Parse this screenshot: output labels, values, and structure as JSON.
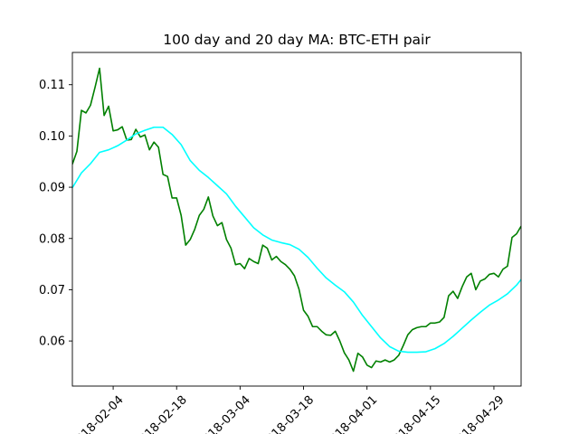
{
  "chart_data": {
    "type": "line",
    "title": "100 day and 20 day MA: BTC-ETH pair",
    "xlabel": "",
    "ylabel": "",
    "x_start": "2018-01-26",
    "x_end": "2018-05-05",
    "ylim": [
      0.0512,
      0.1163
    ],
    "grid": false,
    "x_tick_labels": [
      {
        "date": "2018-02-04",
        "label": "2018-02-04"
      },
      {
        "date": "2018-02-18",
        "label": "2018-02-18"
      },
      {
        "date": "2018-03-04",
        "label": "2018-03-04"
      },
      {
        "date": "2018-03-18",
        "label": "2018-03-18"
      },
      {
        "date": "2018-04-01",
        "label": "2018-04-01"
      },
      {
        "date": "2018-04-15",
        "label": "2018-04-15"
      },
      {
        "date": "2018-04-29",
        "label": "2018-04-29"
      }
    ],
    "y_ticks": [
      {
        "value": 0.06,
        "label": "0.06"
      },
      {
        "value": 0.07,
        "label": "0.07"
      },
      {
        "value": 0.08,
        "label": "0.08"
      },
      {
        "value": 0.09,
        "label": "0.09"
      },
      {
        "value": 0.1,
        "label": "0.10"
      },
      {
        "value": 0.11,
        "label": "0.11"
      }
    ],
    "series": [
      {
        "color": "#008000",
        "points": [
          [
            "2018-01-26",
            0.0945
          ],
          [
            "2018-01-27",
            0.097
          ],
          [
            "2018-01-28",
            0.105
          ],
          [
            "2018-01-29",
            0.1045
          ],
          [
            "2018-01-30",
            0.106
          ],
          [
            "2018-01-31",
            0.1095
          ],
          [
            "2018-02-01",
            0.1132
          ],
          [
            "2018-02-02",
            0.104
          ],
          [
            "2018-02-03",
            0.1058
          ],
          [
            "2018-02-04",
            0.101
          ],
          [
            "2018-02-05",
            0.1012
          ],
          [
            "2018-02-06",
            0.1018
          ],
          [
            "2018-02-07",
            0.0992
          ],
          [
            "2018-02-08",
            0.0993
          ],
          [
            "2018-02-09",
            0.1013
          ],
          [
            "2018-02-10",
            0.0998
          ],
          [
            "2018-02-11",
            0.1002
          ],
          [
            "2018-02-12",
            0.0973
          ],
          [
            "2018-02-13",
            0.0988
          ],
          [
            "2018-02-14",
            0.0978
          ],
          [
            "2018-02-15",
            0.0925
          ],
          [
            "2018-02-16",
            0.0921
          ],
          [
            "2018-02-17",
            0.0879
          ],
          [
            "2018-02-18",
            0.0879
          ],
          [
            "2018-02-19",
            0.0845
          ],
          [
            "2018-02-20",
            0.0787
          ],
          [
            "2018-02-21",
            0.0798
          ],
          [
            "2018-02-22",
            0.0818
          ],
          [
            "2018-02-23",
            0.0845
          ],
          [
            "2018-02-24",
            0.0857
          ],
          [
            "2018-02-25",
            0.0881
          ],
          [
            "2018-02-26",
            0.0844
          ],
          [
            "2018-02-27",
            0.0825
          ],
          [
            "2018-02-28",
            0.0831
          ],
          [
            "2018-03-01",
            0.0798
          ],
          [
            "2018-03-02",
            0.0781
          ],
          [
            "2018-03-03",
            0.0749
          ],
          [
            "2018-03-04",
            0.0751
          ],
          [
            "2018-03-05",
            0.0741
          ],
          [
            "2018-03-06",
            0.0761
          ],
          [
            "2018-03-07",
            0.0755
          ],
          [
            "2018-03-08",
            0.0751
          ],
          [
            "2018-03-09",
            0.0787
          ],
          [
            "2018-03-10",
            0.0781
          ],
          [
            "2018-03-11",
            0.0758
          ],
          [
            "2018-03-12",
            0.0765
          ],
          [
            "2018-03-13",
            0.0755
          ],
          [
            "2018-03-14",
            0.0749
          ],
          [
            "2018-03-15",
            0.074
          ],
          [
            "2018-03-16",
            0.0727
          ],
          [
            "2018-03-17",
            0.0701
          ],
          [
            "2018-03-18",
            0.066
          ],
          [
            "2018-03-19",
            0.0648
          ],
          [
            "2018-03-20",
            0.0628
          ],
          [
            "2018-03-21",
            0.0628
          ],
          [
            "2018-03-22",
            0.0619
          ],
          [
            "2018-03-23",
            0.0612
          ],
          [
            "2018-03-24",
            0.0611
          ],
          [
            "2018-03-25",
            0.0619
          ],
          [
            "2018-03-26",
            0.06
          ],
          [
            "2018-03-27",
            0.0577
          ],
          [
            "2018-03-28",
            0.0563
          ],
          [
            "2018-03-29",
            0.0541
          ],
          [
            "2018-03-30",
            0.0576
          ],
          [
            "2018-03-31",
            0.0569
          ],
          [
            "2018-04-01",
            0.0553
          ],
          [
            "2018-04-02",
            0.0548
          ],
          [
            "2018-04-03",
            0.0561
          ],
          [
            "2018-04-04",
            0.0559
          ],
          [
            "2018-04-05",
            0.0563
          ],
          [
            "2018-04-06",
            0.0559
          ],
          [
            "2018-04-07",
            0.0563
          ],
          [
            "2018-04-08",
            0.0572
          ],
          [
            "2018-04-09",
            0.0591
          ],
          [
            "2018-04-10",
            0.0612
          ],
          [
            "2018-04-11",
            0.0622
          ],
          [
            "2018-04-12",
            0.0626
          ],
          [
            "2018-04-13",
            0.0628
          ],
          [
            "2018-04-14",
            0.0628
          ],
          [
            "2018-04-15",
            0.0635
          ],
          [
            "2018-04-16",
            0.0635
          ],
          [
            "2018-04-17",
            0.0637
          ],
          [
            "2018-04-18",
            0.0646
          ],
          [
            "2018-04-19",
            0.0688
          ],
          [
            "2018-04-20",
            0.0697
          ],
          [
            "2018-04-21",
            0.0683
          ],
          [
            "2018-04-22",
            0.0706
          ],
          [
            "2018-04-23",
            0.0725
          ],
          [
            "2018-04-24",
            0.0732
          ],
          [
            "2018-04-25",
            0.07
          ],
          [
            "2018-04-26",
            0.0717
          ],
          [
            "2018-04-27",
            0.0721
          ],
          [
            "2018-04-28",
            0.073
          ],
          [
            "2018-04-29",
            0.0732
          ],
          [
            "2018-04-30",
            0.0725
          ],
          [
            "2018-05-01",
            0.074
          ],
          [
            "2018-05-02",
            0.0746
          ],
          [
            "2018-05-03",
            0.0802
          ],
          [
            "2018-05-04",
            0.0809
          ],
          [
            "2018-05-05",
            0.0824
          ]
        ]
      },
      {
        "color": "#00ffff",
        "points": [
          [
            "2018-01-26",
            0.0899
          ],
          [
            "2018-01-28",
            0.0928
          ],
          [
            "2018-01-30",
            0.0946
          ],
          [
            "2018-02-01",
            0.0968
          ],
          [
            "2018-02-03",
            0.0973
          ],
          [
            "2018-02-05",
            0.0981
          ],
          [
            "2018-02-07",
            0.0992
          ],
          [
            "2018-02-09",
            0.1004
          ],
          [
            "2018-02-11",
            0.1011
          ],
          [
            "2018-02-13",
            0.1017
          ],
          [
            "2018-02-15",
            0.1017
          ],
          [
            "2018-02-17",
            0.1003
          ],
          [
            "2018-02-19",
            0.0983
          ],
          [
            "2018-02-21",
            0.0952
          ],
          [
            "2018-02-23",
            0.0933
          ],
          [
            "2018-02-25",
            0.0919
          ],
          [
            "2018-02-27",
            0.0903
          ],
          [
            "2018-03-01",
            0.0887
          ],
          [
            "2018-03-03",
            0.0863
          ],
          [
            "2018-03-05",
            0.0842
          ],
          [
            "2018-03-07",
            0.0821
          ],
          [
            "2018-03-09",
            0.0807
          ],
          [
            "2018-03-11",
            0.0797
          ],
          [
            "2018-03-13",
            0.0792
          ],
          [
            "2018-03-15",
            0.0788
          ],
          [
            "2018-03-17",
            0.0779
          ],
          [
            "2018-03-19",
            0.0763
          ],
          [
            "2018-03-21",
            0.0742
          ],
          [
            "2018-03-23",
            0.0723
          ],
          [
            "2018-03-25",
            0.0709
          ],
          [
            "2018-03-27",
            0.0696
          ],
          [
            "2018-03-29",
            0.0676
          ],
          [
            "2018-03-31",
            0.065
          ],
          [
            "2018-04-02",
            0.0628
          ],
          [
            "2018-04-04",
            0.0606
          ],
          [
            "2018-04-06",
            0.0589
          ],
          [
            "2018-04-08",
            0.058
          ],
          [
            "2018-04-10",
            0.0578
          ],
          [
            "2018-04-12",
            0.0578
          ],
          [
            "2018-04-14",
            0.0579
          ],
          [
            "2018-04-16",
            0.0585
          ],
          [
            "2018-04-18",
            0.0595
          ],
          [
            "2018-04-20",
            0.0609
          ],
          [
            "2018-04-22",
            0.0625
          ],
          [
            "2018-04-24",
            0.0641
          ],
          [
            "2018-04-26",
            0.0656
          ],
          [
            "2018-04-28",
            0.067
          ],
          [
            "2018-04-30",
            0.068
          ],
          [
            "2018-05-02",
            0.0692
          ],
          [
            "2018-05-04",
            0.0709
          ],
          [
            "2018-05-05",
            0.072
          ]
        ]
      }
    ]
  }
}
